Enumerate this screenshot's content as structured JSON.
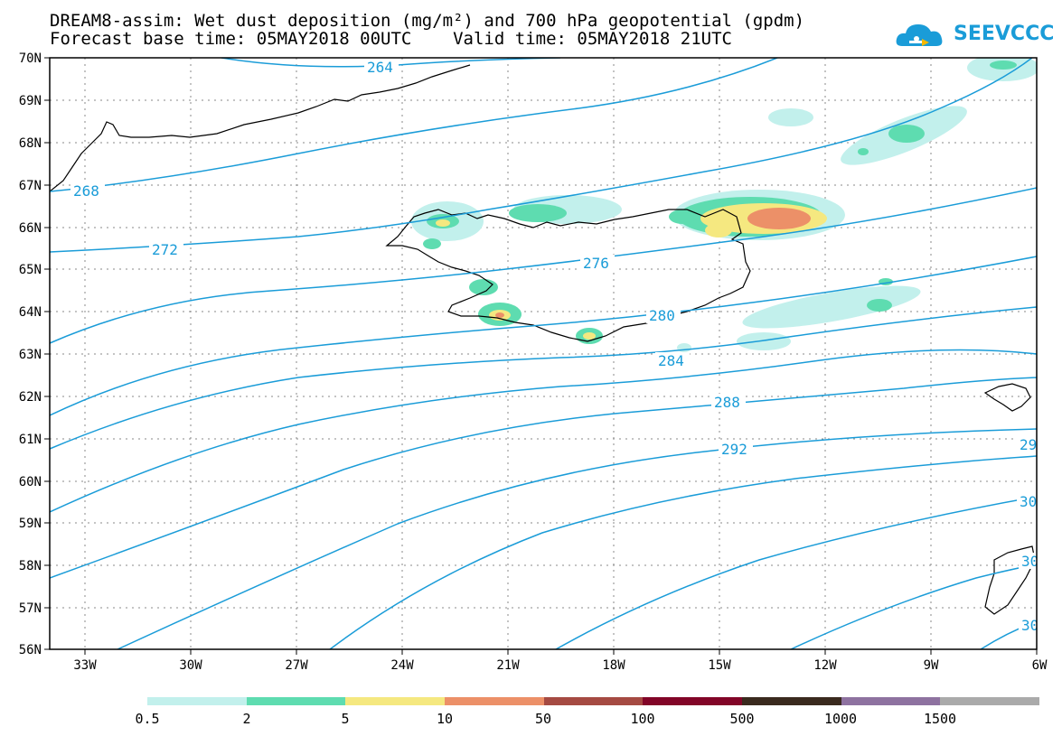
{
  "title": {
    "line1": "DREAM8-assim: Wet dust deposition (mg/m²) and 700 hPa geopotential (gpdm)",
    "line2": "Forecast base time: 05MAY2018 00UTC    Valid time: 05MAY2018 21UTC"
  },
  "logo": {
    "text": "SEEVCCC",
    "icon": "cloud-icon",
    "color": "#1a9cd8"
  },
  "map": {
    "lat_labels": [
      "70N",
      "69N",
      "68N",
      "67N",
      "66N",
      "65N",
      "64N",
      "63N",
      "62N",
      "61N",
      "60N",
      "59N",
      "58N",
      "57N",
      "56N"
    ],
    "lon_labels": [
      "33W",
      "30W",
      "27W",
      "24W",
      "21W",
      "18W",
      "15W",
      "12W",
      "9W",
      "6W"
    ],
    "lon_range": [
      -34,
      -6
    ],
    "lat_range": [
      56,
      70
    ],
    "contour_color": "#1a9cd8",
    "contour_labels": [
      "264",
      "268",
      "272",
      "276",
      "280",
      "284",
      "288",
      "292",
      "29",
      "30",
      "30",
      "30"
    ]
  },
  "legend": {
    "colors": [
      "#c2f0ec",
      "#5edcb0",
      "#f5e880",
      "#ec9068",
      "#a54a42",
      "#820528",
      "#3a2a1e",
      "#8e72a0",
      "#aaaaaa"
    ],
    "labels": [
      "0.5",
      "2",
      "5",
      "10",
      "50",
      "100",
      "500",
      "1000",
      "1500"
    ]
  }
}
